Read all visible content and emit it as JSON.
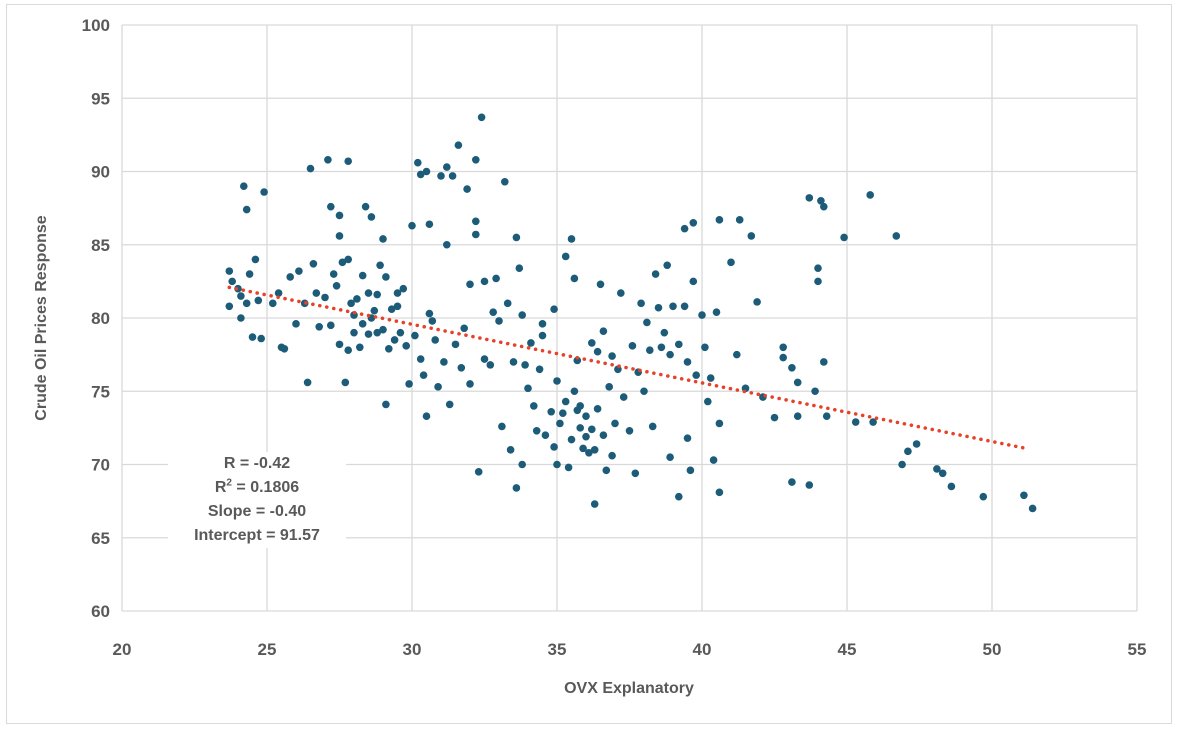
{
  "chart_data": {
    "type": "scatter",
    "title": "",
    "xlabel": "OVX Explanatory",
    "ylabel": "Crude Oil Prices Response",
    "xlim": [
      20,
      55
    ],
    "ylim": [
      60,
      100
    ],
    "xticks": [
      20,
      25,
      30,
      35,
      40,
      45,
      50,
      55
    ],
    "yticks": [
      60,
      65,
      70,
      75,
      80,
      85,
      90,
      95,
      100
    ],
    "grid": true,
    "legend": "none",
    "point_color": "#1d5c78",
    "trendline": {
      "type": "linear",
      "slope": -0.4,
      "intercept": 91.57,
      "x_range": [
        23.7,
        51.2
      ],
      "color": "#e8412a",
      "style": "dotted"
    },
    "annotation": {
      "r": "R = -0.42",
      "r2_prefix": "R",
      "r2_sup": "2",
      "r2_rest": " = 0.1806",
      "slope": "Slope = -0.40",
      "intercept": "Intercept = 91.57"
    },
    "points": [
      [
        23.7,
        83.2
      ],
      [
        23.8,
        82.5
      ],
      [
        24.0,
        82.0
      ],
      [
        24.1,
        81.5
      ],
      [
        23.7,
        80.8
      ],
      [
        24.3,
        81.0
      ],
      [
        24.1,
        80.0
      ],
      [
        24.2,
        89.0
      ],
      [
        24.3,
        87.4
      ],
      [
        24.6,
        84.0
      ],
      [
        24.9,
        88.6
      ],
      [
        24.5,
        78.7
      ],
      [
        24.8,
        78.6
      ],
      [
        25.5,
        78.0
      ],
      [
        25.6,
        77.9
      ],
      [
        25.4,
        81.7
      ],
      [
        25.8,
        82.8
      ],
      [
        26.1,
        83.2
      ],
      [
        26.4,
        75.6
      ],
      [
        26.5,
        90.2
      ],
      [
        26.6,
        83.7
      ],
      [
        26.7,
        81.7
      ],
      [
        26.8,
        79.4
      ],
      [
        27.1,
        90.8
      ],
      [
        27.2,
        87.6
      ],
      [
        27.3,
        83.0
      ],
      [
        27.4,
        82.2
      ],
      [
        27.5,
        85.6
      ],
      [
        27.5,
        87.0
      ],
      [
        27.6,
        83.8
      ],
      [
        27.7,
        75.6
      ],
      [
        27.8,
        90.7
      ],
      [
        27.8,
        84.0
      ],
      [
        27.9,
        81.0
      ],
      [
        28.0,
        79.0
      ],
      [
        28.2,
        78.0
      ],
      [
        28.3,
        82.9
      ],
      [
        28.4,
        87.6
      ],
      [
        28.5,
        81.7
      ],
      [
        28.6,
        86.9
      ],
      [
        28.7,
        80.5
      ],
      [
        28.8,
        79.0
      ],
      [
        28.9,
        83.6
      ],
      [
        29.0,
        85.4
      ],
      [
        29.1,
        82.8
      ],
      [
        29.1,
        74.1
      ],
      [
        29.2,
        77.9
      ],
      [
        29.4,
        78.5
      ],
      [
        29.5,
        81.7
      ],
      [
        29.7,
        82.0
      ],
      [
        29.9,
        75.5
      ],
      [
        30.0,
        86.3
      ],
      [
        30.2,
        90.6
      ],
      [
        30.3,
        89.8
      ],
      [
        30.5,
        90.0
      ],
      [
        30.6,
        86.4
      ],
      [
        30.5,
        73.3
      ],
      [
        30.7,
        79.8
      ],
      [
        30.9,
        75.3
      ],
      [
        31.0,
        89.7
      ],
      [
        31.2,
        90.3
      ],
      [
        31.2,
        85.0
      ],
      [
        31.3,
        74.1
      ],
      [
        31.4,
        89.7
      ],
      [
        31.6,
        91.8
      ],
      [
        31.9,
        88.8
      ],
      [
        32.0,
        82.3
      ],
      [
        32.2,
        86.6
      ],
      [
        32.2,
        90.8
      ],
      [
        32.2,
        85.7
      ],
      [
        32.3,
        69.5
      ],
      [
        32.4,
        93.7
      ],
      [
        32.5,
        82.5
      ],
      [
        32.7,
        76.8
      ],
      [
        32.9,
        82.7
      ],
      [
        33.1,
        72.6
      ],
      [
        33.2,
        89.3
      ],
      [
        33.4,
        71.0
      ],
      [
        33.6,
        68.4
      ],
      [
        33.6,
        85.5
      ],
      [
        33.7,
        83.4
      ],
      [
        33.8,
        70.0
      ],
      [
        34.0,
        75.2
      ],
      [
        34.1,
        78.3
      ],
      [
        34.3,
        72.3
      ],
      [
        34.5,
        79.6
      ],
      [
        34.8,
        73.6
      ],
      [
        35.0,
        70.0
      ],
      [
        35.0,
        75.7
      ],
      [
        35.2,
        73.5
      ],
      [
        35.3,
        84.2
      ],
      [
        35.5,
        85.4
      ],
      [
        35.6,
        82.7
      ],
      [
        35.7,
        73.7
      ],
      [
        35.8,
        72.5
      ],
      [
        35.9,
        71.1
      ],
      [
        36.0,
        71.9
      ],
      [
        36.2,
        72.4
      ],
      [
        36.3,
        67.3
      ],
      [
        36.4,
        77.7
      ],
      [
        36.5,
        82.3
      ],
      [
        36.7,
        69.6
      ],
      [
        36.9,
        70.6
      ],
      [
        37.2,
        81.7
      ],
      [
        37.5,
        72.3
      ],
      [
        37.7,
        69.4
      ],
      [
        37.9,
        81.0
      ],
      [
        38.1,
        79.7
      ],
      [
        38.3,
        72.6
      ],
      [
        38.4,
        83.0
      ],
      [
        38.6,
        78.0
      ],
      [
        38.8,
        83.6
      ],
      [
        38.9,
        70.5
      ],
      [
        39.2,
        67.8
      ],
      [
        39.4,
        86.1
      ],
      [
        39.5,
        71.8
      ],
      [
        39.6,
        69.6
      ],
      [
        39.7,
        86.5
      ],
      [
        39.7,
        82.5
      ],
      [
        40.0,
        80.2
      ],
      [
        40.3,
        75.9
      ],
      [
        40.4,
        70.3
      ],
      [
        40.5,
        80.4
      ],
      [
        40.6,
        72.8
      ],
      [
        40.6,
        68.1
      ],
      [
        40.6,
        86.7
      ],
      [
        41.0,
        83.8
      ],
      [
        41.2,
        77.5
      ],
      [
        41.3,
        86.7
      ],
      [
        41.5,
        75.2
      ],
      [
        41.7,
        85.6
      ],
      [
        41.9,
        81.1
      ],
      [
        42.1,
        74.6
      ],
      [
        42.5,
        73.2
      ],
      [
        42.8,
        77.3
      ],
      [
        42.8,
        78.0
      ],
      [
        43.1,
        76.6
      ],
      [
        43.1,
        68.8
      ],
      [
        43.3,
        75.6
      ],
      [
        43.3,
        73.3
      ],
      [
        43.7,
        68.6
      ],
      [
        43.7,
        88.2
      ],
      [
        43.9,
        75.0
      ],
      [
        44.0,
        83.4
      ],
      [
        44.0,
        82.5
      ],
      [
        44.1,
        88.0
      ],
      [
        44.2,
        87.6
      ],
      [
        44.2,
        77.0
      ],
      [
        44.3,
        73.3
      ],
      [
        44.9,
        85.5
      ],
      [
        45.3,
        72.9
      ],
      [
        45.8,
        88.4
      ],
      [
        45.9,
        72.9
      ],
      [
        46.7,
        85.6
      ],
      [
        46.9,
        70.0
      ],
      [
        47.1,
        70.9
      ],
      [
        47.4,
        71.4
      ],
      [
        48.1,
        69.7
      ],
      [
        48.3,
        69.4
      ],
      [
        48.6,
        68.5
      ],
      [
        49.7,
        67.8
      ],
      [
        51.1,
        67.9
      ],
      [
        51.4,
        67.0
      ],
      [
        27.2,
        79.5
      ],
      [
        27.5,
        78.2
      ],
      [
        27.8,
        77.8
      ],
      [
        28.0,
        80.2
      ],
      [
        28.1,
        81.3
      ],
      [
        28.3,
        79.6
      ],
      [
        28.5,
        78.9
      ],
      [
        28.6,
        80.0
      ],
      [
        28.8,
        81.6
      ],
      [
        29.0,
        79.2
      ],
      [
        29.3,
        80.6
      ],
      [
        29.6,
        79.0
      ],
      [
        29.8,
        78.1
      ],
      [
        30.1,
        78.8
      ],
      [
        30.3,
        77.2
      ],
      [
        30.4,
        76.1
      ],
      [
        30.8,
        78.5
      ],
      [
        31.1,
        77.0
      ],
      [
        31.5,
        78.2
      ],
      [
        31.7,
        76.6
      ],
      [
        32.0,
        75.5
      ],
      [
        32.5,
        77.2
      ],
      [
        33.0,
        79.8
      ],
      [
        33.3,
        81.0
      ],
      [
        33.5,
        77.0
      ],
      [
        33.9,
        76.8
      ],
      [
        34.2,
        74.0
      ],
      [
        34.4,
        76.5
      ],
      [
        34.6,
        72.0
      ],
      [
        34.9,
        71.2
      ],
      [
        35.1,
        72.8
      ],
      [
        35.3,
        74.3
      ],
      [
        35.4,
        69.8
      ],
      [
        35.5,
        71.7
      ],
      [
        35.6,
        75.0
      ],
      [
        35.8,
        74.0
      ],
      [
        36.0,
        73.3
      ],
      [
        36.1,
        70.8
      ],
      [
        36.3,
        71.0
      ],
      [
        36.4,
        73.8
      ],
      [
        36.6,
        72.0
      ],
      [
        36.8,
        75.3
      ],
      [
        37.0,
        72.8
      ],
      [
        37.1,
        76.5
      ],
      [
        37.3,
        74.6
      ],
      [
        37.6,
        78.1
      ],
      [
        37.8,
        76.3
      ],
      [
        38.0,
        75.0
      ],
      [
        38.2,
        77.8
      ],
      [
        38.5,
        80.7
      ],
      [
        38.7,
        79.0
      ],
      [
        38.9,
        77.5
      ],
      [
        39.0,
        80.8
      ],
      [
        39.2,
        78.2
      ],
      [
        39.4,
        80.8
      ],
      [
        39.5,
        77.0
      ],
      [
        39.8,
        76.1
      ],
      [
        40.1,
        78.0
      ],
      [
        40.2,
        74.3
      ],
      [
        35.7,
        77.1
      ],
      [
        36.2,
        78.3
      ],
      [
        36.6,
        79.1
      ],
      [
        36.9,
        77.4
      ],
      [
        34.5,
        78.8
      ],
      [
        34.9,
        80.6
      ],
      [
        33.8,
        80.2
      ],
      [
        32.8,
        80.4
      ],
      [
        31.8,
        79.3
      ],
      [
        30.6,
        80.3
      ],
      [
        29.5,
        80.8
      ],
      [
        27.0,
        81.4
      ],
      [
        26.3,
        81.0
      ],
      [
        26.0,
        79.6
      ],
      [
        25.2,
        81.0
      ],
      [
        24.7,
        81.2
      ],
      [
        24.4,
        83.0
      ]
    ]
  }
}
